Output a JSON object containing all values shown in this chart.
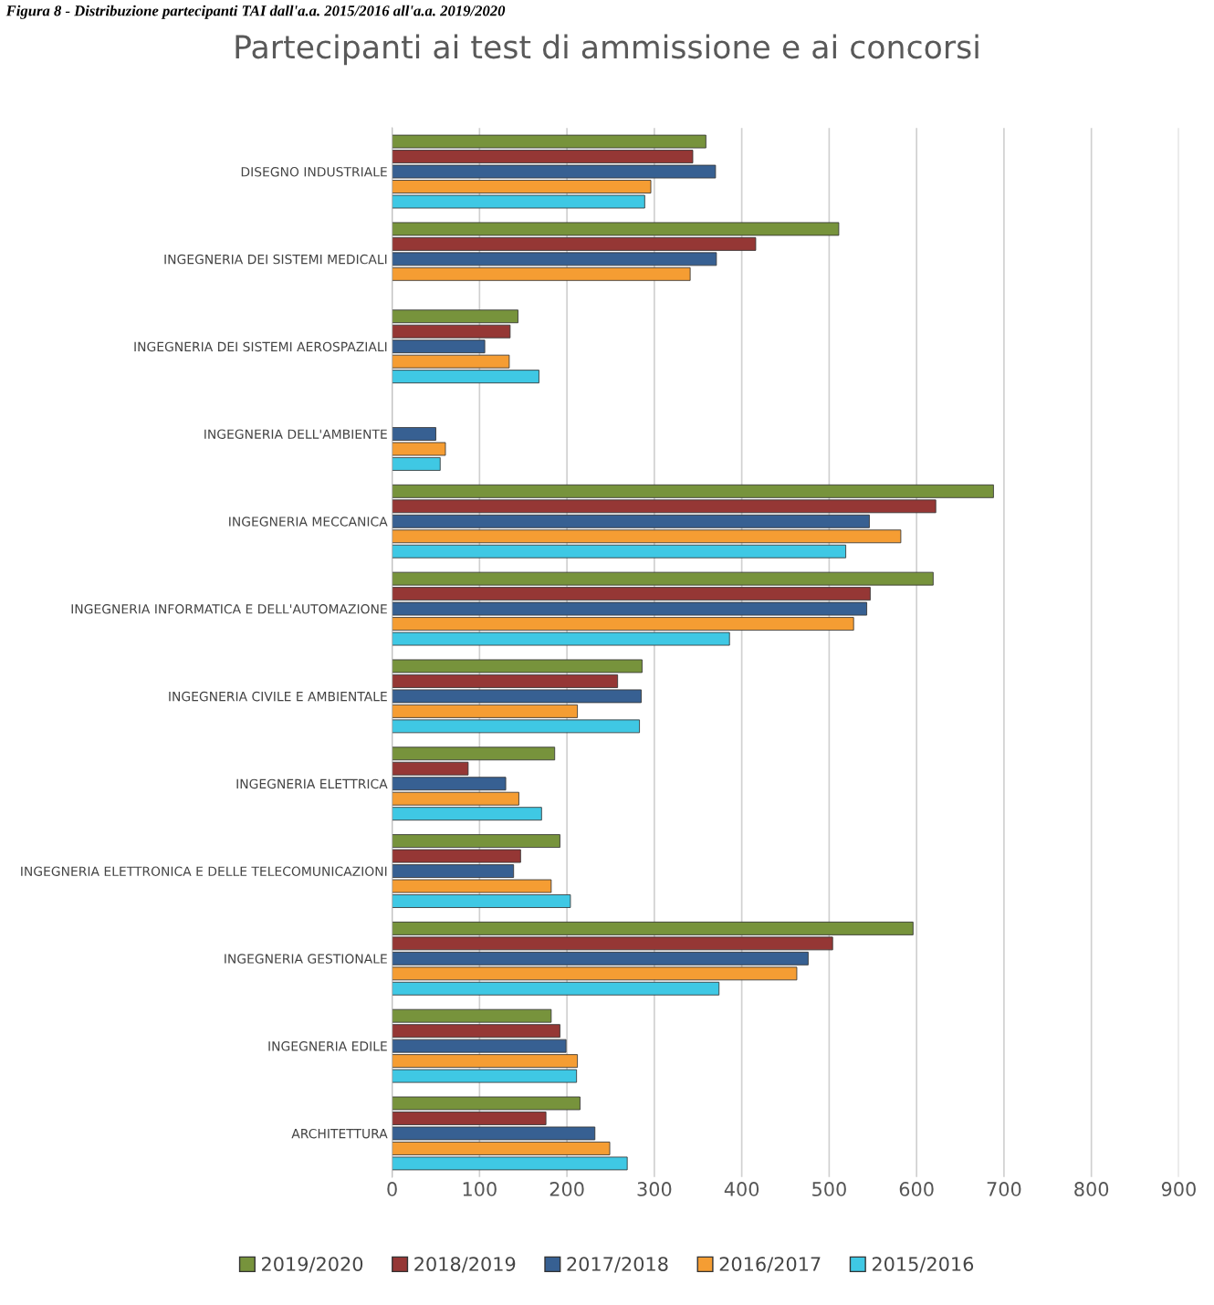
{
  "chart_data": {
    "type": "bar",
    "orientation": "horizontal",
    "title": "Partecipanti ai test di ammissione e ai concorsi",
    "annotations": [
      "Figura 8 - Distribuzione partecipanti TAI dall'a.a. 2015/2016 all'a.a. 2019/2020"
    ],
    "categories": [
      "DISEGNO INDUSTRIALE",
      "INGEGNERIA DEI SISTEMI MEDICALI",
      "INGEGNERIA DEI SISTEMI AEROSPAZIALI",
      "INGEGNERIA DELL'AMBIENTE",
      "INGEGNERIA MECCANICA",
      "INGEGNERIA INFORMATICA E DELL'AUTOMAZIONE",
      "INGEGNERIA CIVILE E AMBIENTALE",
      "INGEGNERIA ELETTRICA",
      "INGEGNERIA ELETTRONICA E DELLE TELECOMUNICAZIONI",
      "INGEGNERIA GESTIONALE",
      "INGEGNERIA EDILE",
      "ARCHITETTURA"
    ],
    "series": [
      {
        "name": "2019/2020",
        "color": "#77933c",
        "values": [
          359,
          511,
          144,
          null,
          688,
          619,
          286,
          186,
          192,
          596,
          182,
          215
        ]
      },
      {
        "name": "2018/2019",
        "color": "#953735",
        "values": [
          344,
          416,
          135,
          null,
          622,
          547,
          258,
          87,
          147,
          504,
          192,
          176
        ]
      },
      {
        "name": "2017/2018",
        "color": "#376092",
        "values": [
          370,
          371,
          106,
          50,
          546,
          543,
          285,
          130,
          139,
          476,
          199,
          232
        ]
      },
      {
        "name": "2016/2017",
        "color": "#f59d33",
        "values": [
          296,
          341,
          134,
          61,
          582,
          528,
          212,
          145,
          182,
          463,
          212,
          249
        ]
      },
      {
        "name": "2015/2016",
        "color": "#3fc8e4",
        "values": [
          289,
          null,
          168,
          55,
          519,
          386,
          283,
          171,
          204,
          374,
          211,
          269
        ]
      }
    ],
    "xlim": [
      0,
      900
    ],
    "xticks": [
      0,
      100,
      200,
      300,
      400,
      500,
      600,
      700,
      800,
      900
    ],
    "grid": "x",
    "legend": "bottom"
  }
}
